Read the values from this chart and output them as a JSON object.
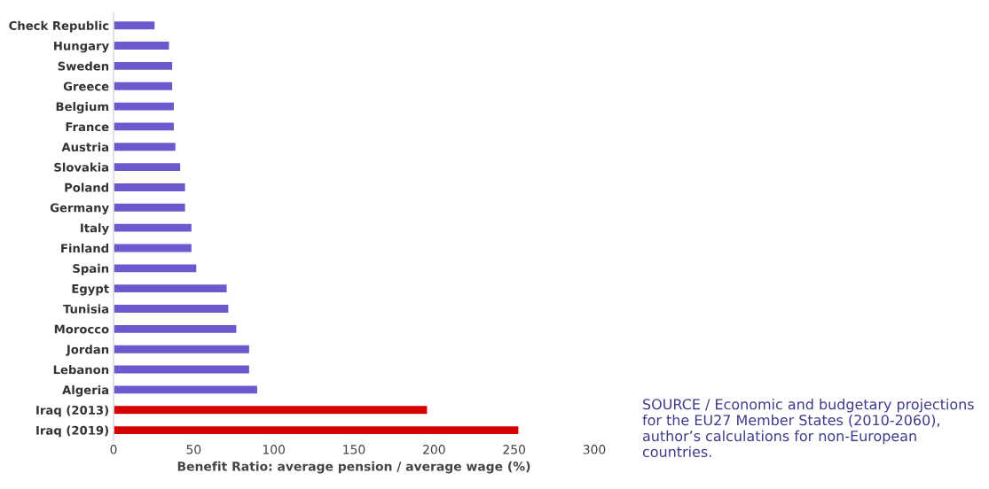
{
  "chart_data": {
    "type": "bar",
    "orientation": "horizontal",
    "xlabel": "Benefit Ratio: average pension / average wage (%)",
    "categories": [
      "Check Republic",
      "Hungary",
      "Sweden",
      "Greece",
      "Belgium",
      "France",
      "Austria",
      "Slovakia",
      "Poland",
      "Germany",
      "Italy",
      "Finland",
      "Spain",
      "Egypt",
      "Tunisia",
      "Morocco",
      "Jordan",
      "Lebanon",
      "Algeria",
      "Iraq (2013)",
      "Iraq (2019)"
    ],
    "values": [
      26,
      35,
      37,
      37,
      38,
      38,
      39,
      42,
      45,
      45,
      49,
      49,
      52,
      71,
      72,
      77,
      85,
      85,
      90,
      196,
      253
    ],
    "colors": [
      "#6a5acd",
      "#6a5acd",
      "#6a5acd",
      "#6a5acd",
      "#6a5acd",
      "#6a5acd",
      "#6a5acd",
      "#6a5acd",
      "#6a5acd",
      "#6a5acd",
      "#6a5acd",
      "#6a5acd",
      "#6a5acd",
      "#6a5acd",
      "#6a5acd",
      "#6a5acd",
      "#6a5acd",
      "#6a5acd",
      "#6a5acd",
      "#d40000",
      "#d40000"
    ],
    "xlim": [
      0,
      300
    ],
    "xticks": [
      0,
      50,
      100,
      150,
      200,
      250,
      300
    ],
    "grid": false,
    "legend": false,
    "annotations": [
      "SOURCE / Economic and budgetary projections for the EU27 Member States (2010-2060), author’s calculations for non-European countries."
    ]
  }
}
